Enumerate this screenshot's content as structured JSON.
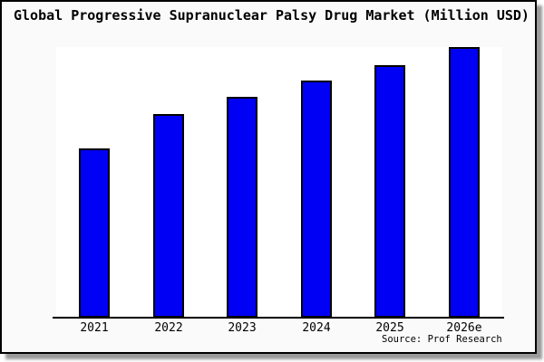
{
  "chart_data": {
    "type": "bar",
    "title": "Global Progressive Supranuclear Palsy Drug Market (Million USD)",
    "categories": [
      "2021",
      "2022",
      "2023",
      "2024",
      "2025",
      "2026e"
    ],
    "values": [
      62.5,
      75.3,
      81.6,
      87.6,
      93.3,
      100
    ],
    "values_note": "no y-axis shown in image; values are relative bar heights with 2026e = 100",
    "xlabel": "",
    "ylabel": "",
    "ylim": [
      0,
      100
    ],
    "grid": false,
    "legend": "none",
    "source": "Source: Prof Research",
    "bar_color": "#0000f5",
    "bar_edge_color": "#000000"
  }
}
